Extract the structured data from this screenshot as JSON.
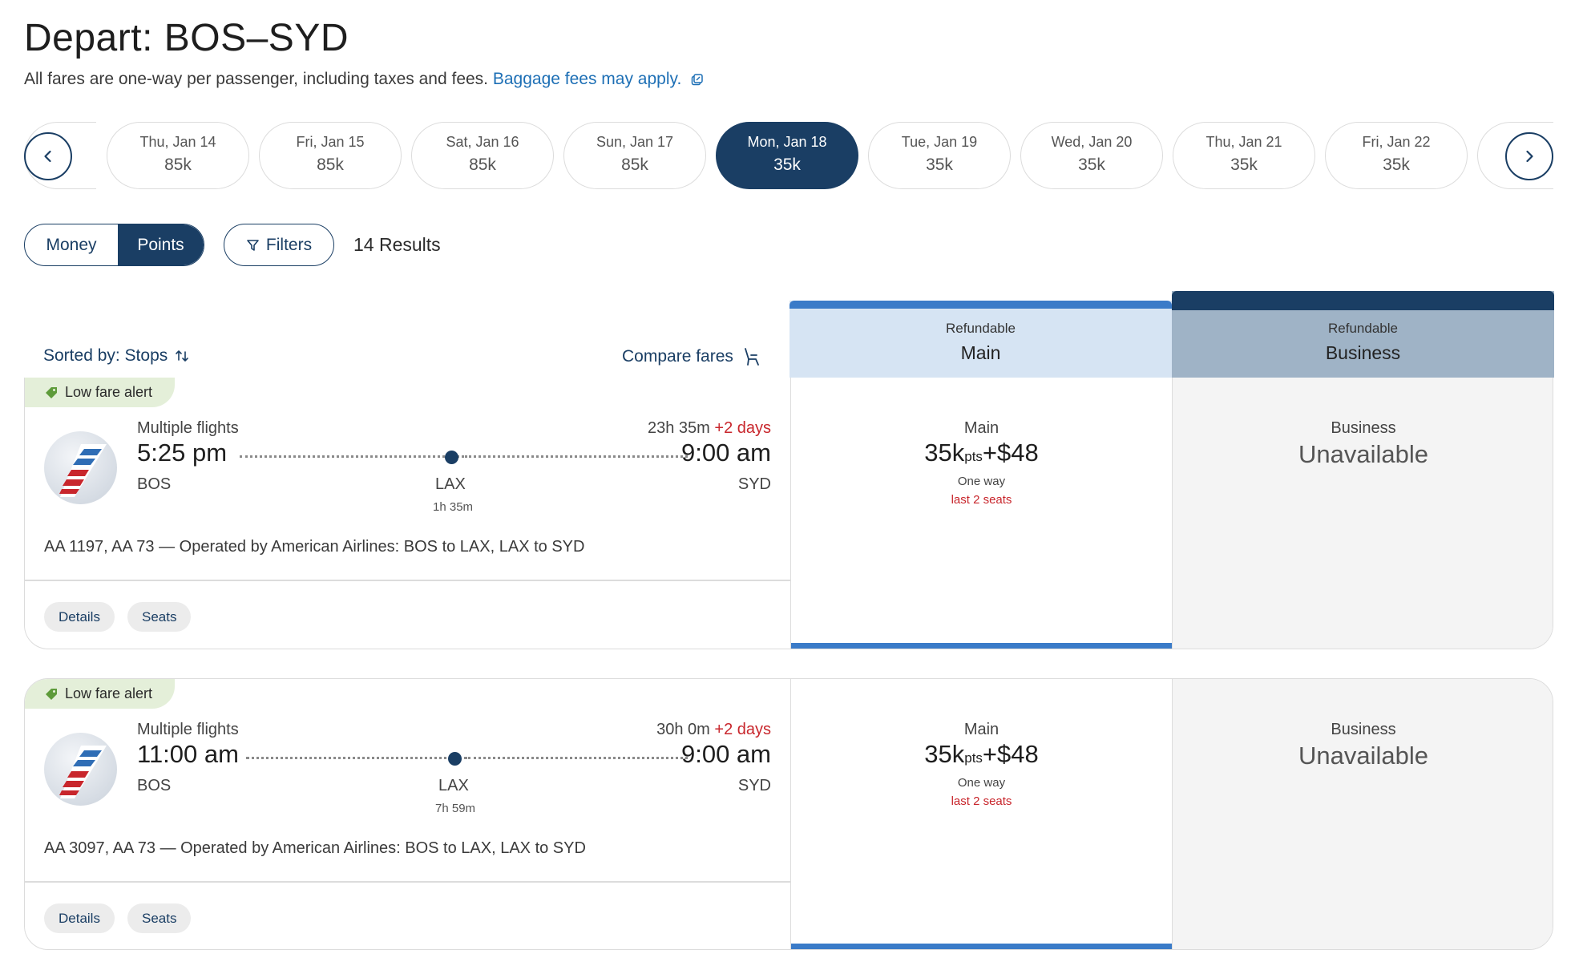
{
  "header": {
    "title": "Depart: BOS–SYD",
    "subtitle": "All fares are one-way per passenger, including taxes and fees.",
    "baggage_link": "Baggage fees may apply."
  },
  "dates": [
    {
      "day": "Thu, Jan 14",
      "price": "85k"
    },
    {
      "day": "Fri, Jan 15",
      "price": "85k"
    },
    {
      "day": "Sat, Jan 16",
      "price": "85k"
    },
    {
      "day": "Sun, Jan 17",
      "price": "85k"
    },
    {
      "day": "Mon, Jan 18",
      "price": "35k"
    },
    {
      "day": "Tue, Jan 19",
      "price": "35k"
    },
    {
      "day": "Wed, Jan 20",
      "price": "35k"
    },
    {
      "day": "Thu, Jan 21",
      "price": "35k"
    },
    {
      "day": "Fri, Jan 22",
      "price": "35k"
    }
  ],
  "toolbar": {
    "money_label": "Money",
    "points_label": "Points",
    "filters_label": "Filters",
    "results": "14 Results"
  },
  "list_header": {
    "sorted_by": "Sorted by: Stops",
    "compare": "Compare fares"
  },
  "columns": {
    "main": {
      "small": "Refundable",
      "big": "Main"
    },
    "business": {
      "small": "Refundable",
      "big": "Business"
    }
  },
  "flights": [
    {
      "alert": "Low fare alert",
      "type": "Multiple flights",
      "duration": "23h 35m",
      "plus_days": "+2 days",
      "depart_time": "5:25 pm",
      "arrive_time": "9:00 am",
      "origin": "BOS",
      "stop": "LAX",
      "layover": "1h 35m",
      "destination": "SYD",
      "operated": "AA 1197, AA 73 — Operated by American Airlines: BOS to LAX, LAX to SYD",
      "details_label": "Details",
      "seats_label": "Seats",
      "main_fare": {
        "label": "Main",
        "points": "35k",
        "pts_unit": "pts",
        "cash": "+$48",
        "one_way": "One way",
        "seats_left": "last 2 seats"
      },
      "business_fare": {
        "label": "Business",
        "status": "Unavailable"
      }
    },
    {
      "alert": "Low fare alert",
      "type": "Multiple flights",
      "duration": "30h 0m",
      "plus_days": "+2 days",
      "depart_time": "11:00 am",
      "arrive_time": "9:00 am",
      "origin": "BOS",
      "stop": "LAX",
      "layover": "7h 59m",
      "destination": "SYD",
      "operated": "AA 3097, AA 73 — Operated by American Airlines: BOS to LAX, LAX to SYD",
      "details_label": "Details",
      "seats_label": "Seats",
      "main_fare": {
        "label": "Main",
        "points": "35k",
        "pts_unit": "pts",
        "cash": "+$48",
        "one_way": "One way",
        "seats_left": "last 2 seats"
      },
      "business_fare": {
        "label": "Business",
        "status": "Unavailable"
      }
    }
  ],
  "colors": {
    "navy": "#1a3e64",
    "link_blue": "#1d6fb5",
    "accent_blue": "#3a7bc8",
    "alert_green": "#e4efd9",
    "warning_red": "#c8262c"
  },
  "icons": {
    "prev": "chevron-left-icon",
    "next": "chevron-right-icon",
    "filter": "filter-icon",
    "sort": "sort-arrows-icon",
    "compare": "seat-icon",
    "external": "external-link-icon",
    "alert": "tag-icon",
    "airline": "american-airlines-logo"
  }
}
